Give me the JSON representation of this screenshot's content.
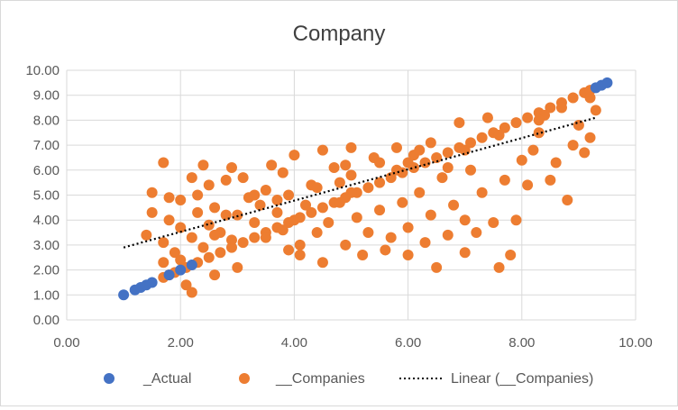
{
  "chart_data": {
    "type": "scatter",
    "title": "Company",
    "xlim": [
      0,
      10
    ],
    "ylim": [
      0,
      10
    ],
    "x_ticks": [
      "0.00",
      "2.00",
      "4.00",
      "6.00",
      "8.00",
      "10.00"
    ],
    "y_ticks": [
      "0.00",
      "1.00",
      "2.00",
      "3.00",
      "4.00",
      "5.00",
      "6.00",
      "7.00",
      "8.00",
      "9.00",
      "10.00"
    ],
    "grid": true,
    "legend_position": "bottom",
    "legend": {
      "actual": "_Actual",
      "companies": "__Companies",
      "trend": "Linear (__Companies)"
    },
    "colors": {
      "actual": "#4472c4",
      "companies": "#ed7d31",
      "trend": "#000000",
      "grid": "#d9d9d9",
      "text": "#595959"
    },
    "series": [
      {
        "name": "_Actual",
        "points": [
          [
            1.0,
            1.0
          ],
          [
            1.2,
            1.2
          ],
          [
            1.3,
            1.3
          ],
          [
            1.4,
            1.4
          ],
          [
            1.5,
            1.5
          ],
          [
            1.8,
            1.8
          ],
          [
            2.0,
            2.0
          ],
          [
            2.2,
            2.2
          ],
          [
            9.3,
            9.3
          ],
          [
            9.4,
            9.4
          ],
          [
            9.5,
            9.5
          ]
        ]
      },
      {
        "name": "__Companies",
        "points": [
          [
            1.7,
            1.7
          ],
          [
            1.8,
            1.8
          ],
          [
            1.9,
            1.9
          ],
          [
            2.1,
            2.1
          ],
          [
            2.3,
            2.3
          ],
          [
            2.5,
            2.5
          ],
          [
            2.7,
            2.7
          ],
          [
            2.9,
            2.9
          ],
          [
            3.1,
            3.1
          ],
          [
            3.3,
            3.3
          ],
          [
            3.5,
            3.5
          ],
          [
            3.7,
            3.7
          ],
          [
            3.9,
            3.9
          ],
          [
            4.1,
            4.1
          ],
          [
            4.3,
            4.3
          ],
          [
            4.5,
            4.5
          ],
          [
            4.7,
            4.7
          ],
          [
            4.9,
            4.9
          ],
          [
            5.1,
            5.1
          ],
          [
            5.3,
            5.3
          ],
          [
            5.5,
            5.5
          ],
          [
            5.7,
            5.7
          ],
          [
            5.9,
            5.9
          ],
          [
            6.1,
            6.1
          ],
          [
            6.3,
            6.3
          ],
          [
            6.5,
            6.5
          ],
          [
            6.7,
            6.7
          ],
          [
            6.9,
            6.9
          ],
          [
            7.1,
            7.1
          ],
          [
            7.3,
            7.3
          ],
          [
            7.5,
            7.5
          ],
          [
            7.7,
            7.7
          ],
          [
            7.9,
            7.9
          ],
          [
            8.1,
            8.1
          ],
          [
            8.3,
            8.3
          ],
          [
            8.5,
            8.5
          ],
          [
            8.7,
            8.7
          ],
          [
            8.9,
            8.9
          ],
          [
            9.1,
            9.1
          ],
          [
            9.2,
            9.2
          ],
          [
            1.7,
            6.3
          ],
          [
            1.5,
            5.1
          ],
          [
            1.5,
            4.3
          ],
          [
            1.4,
            3.4
          ],
          [
            1.8,
            4.9
          ],
          [
            1.8,
            4.0
          ],
          [
            1.7,
            3.1
          ],
          [
            1.7,
            2.3
          ],
          [
            2.0,
            4.8
          ],
          [
            2.0,
            3.7
          ],
          [
            1.9,
            2.7
          ],
          [
            2.1,
            1.4
          ],
          [
            2.2,
            1.1
          ],
          [
            2.0,
            2.4
          ],
          [
            2.2,
            5.7
          ],
          [
            2.4,
            6.2
          ],
          [
            2.3,
            5.0
          ],
          [
            2.3,
            4.3
          ],
          [
            2.2,
            3.3
          ],
          [
            2.5,
            5.4
          ],
          [
            2.5,
            3.8
          ],
          [
            2.4,
            2.9
          ],
          [
            2.6,
            4.5
          ],
          [
            2.7,
            3.5
          ],
          [
            2.6,
            1.8
          ],
          [
            2.8,
            5.6
          ],
          [
            2.9,
            6.1
          ],
          [
            2.8,
            4.2
          ],
          [
            2.9,
            3.2
          ],
          [
            3.0,
            2.1
          ],
          [
            3.1,
            5.7
          ],
          [
            3.2,
            4.9
          ],
          [
            3.3,
            3.9
          ],
          [
            3.4,
            4.6
          ],
          [
            3.5,
            5.2
          ],
          [
            3.5,
            3.3
          ],
          [
            3.6,
            6.2
          ],
          [
            3.7,
            4.3
          ],
          [
            3.8,
            5.9
          ],
          [
            3.8,
            3.6
          ],
          [
            3.9,
            2.8
          ],
          [
            3.9,
            5.0
          ],
          [
            4.0,
            6.6
          ],
          [
            4.1,
            3.0
          ],
          [
            4.1,
            2.6
          ],
          [
            4.2,
            4.6
          ],
          [
            4.3,
            5.4
          ],
          [
            4.4,
            3.5
          ],
          [
            4.5,
            6.8
          ],
          [
            4.5,
            2.3
          ],
          [
            4.6,
            3.9
          ],
          [
            4.7,
            6.1
          ],
          [
            4.8,
            4.7
          ],
          [
            4.9,
            3.0
          ],
          [
            5.0,
            6.9
          ],
          [
            5.0,
            5.8
          ],
          [
            5.1,
            4.1
          ],
          [
            5.2,
            2.6
          ],
          [
            5.3,
            3.5
          ],
          [
            5.4,
            6.5
          ],
          [
            5.5,
            4.4
          ],
          [
            5.6,
            2.8
          ],
          [
            5.7,
            3.3
          ],
          [
            5.8,
            6.9
          ],
          [
            5.9,
            4.7
          ],
          [
            6.0,
            2.6
          ],
          [
            6.0,
            3.7
          ],
          [
            6.1,
            6.6
          ],
          [
            6.2,
            5.1
          ],
          [
            6.3,
            3.1
          ],
          [
            6.4,
            4.2
          ],
          [
            6.5,
            2.1
          ],
          [
            6.6,
            5.7
          ],
          [
            6.7,
            3.4
          ],
          [
            6.8,
            4.6
          ],
          [
            6.9,
            7.9
          ],
          [
            7.0,
            4.0
          ],
          [
            7.0,
            2.7
          ],
          [
            7.1,
            6.0
          ],
          [
            7.2,
            3.5
          ],
          [
            7.3,
            5.1
          ],
          [
            7.4,
            8.1
          ],
          [
            7.5,
            3.9
          ],
          [
            7.6,
            2.1
          ],
          [
            7.7,
            5.6
          ],
          [
            7.8,
            2.6
          ],
          [
            7.9,
            4.0
          ],
          [
            8.0,
            6.4
          ],
          [
            8.1,
            5.4
          ],
          [
            8.2,
            6.8
          ],
          [
            8.3,
            7.5
          ],
          [
            8.4,
            8.2
          ],
          [
            8.5,
            5.6
          ],
          [
            8.6,
            6.3
          ],
          [
            8.7,
            8.5
          ],
          [
            8.8,
            4.8
          ],
          [
            8.9,
            7.0
          ],
          [
            9.0,
            7.8
          ],
          [
            9.1,
            6.7
          ],
          [
            9.2,
            7.3
          ],
          [
            9.3,
            8.4
          ],
          [
            9.2,
            8.9
          ],
          [
            5.5,
            6.3
          ],
          [
            4.8,
            5.5
          ],
          [
            6.4,
            7.1
          ],
          [
            3.3,
            5.0
          ],
          [
            4.0,
            4.0
          ],
          [
            5.0,
            5.1
          ],
          [
            6.0,
            6.3
          ],
          [
            7.0,
            6.8
          ],
          [
            7.6,
            7.4
          ],
          [
            8.3,
            8.0
          ],
          [
            3.0,
            4.2
          ],
          [
            4.4,
            5.3
          ],
          [
            5.8,
            6.0
          ],
          [
            6.7,
            6.1
          ],
          [
            2.6,
            3.4
          ],
          [
            3.7,
            4.8
          ],
          [
            4.9,
            6.2
          ],
          [
            6.2,
            6.8
          ]
        ]
      }
    ],
    "trendline": {
      "name": "Linear (__Companies)",
      "x": [
        1.0,
        9.3
      ],
      "y": [
        2.9,
        8.1
      ]
    }
  }
}
